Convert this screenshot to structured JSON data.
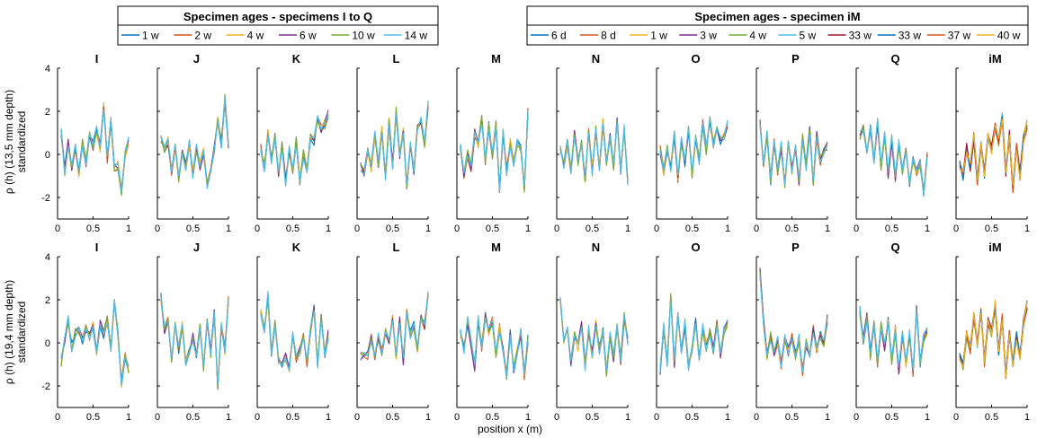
{
  "chart_data": {
    "type": "line",
    "xlabel": "position x (m)",
    "x_ticks": [
      "0",
      "0.5",
      "1"
    ],
    "xlim": [
      0,
      1
    ],
    "ylim": [
      -3,
      4
    ],
    "y_ticks": [
      "-2",
      "0",
      "2",
      "4"
    ],
    "row_ylabels": [
      [
        "ρ (h) (13,5 mm depth)",
        "standardized"
      ],
      [
        "ρ (h) (19,4 mm depth)",
        "standardized"
      ]
    ],
    "panels": [
      "I",
      "J",
      "K",
      "L",
      "M",
      "N",
      "O",
      "P",
      "Q",
      "iM"
    ],
    "legends": [
      {
        "title": "Specimen ages - specimens I to Q",
        "entries": [
          {
            "label": "1 w",
            "color": "#0072BD"
          },
          {
            "label": "2 w",
            "color": "#D95319"
          },
          {
            "label": "4 w",
            "color": "#EDB120"
          },
          {
            "label": "6 w",
            "color": "#7E2F8E"
          },
          {
            "label": "10 w",
            "color": "#77AC30"
          },
          {
            "label": "14 w",
            "color": "#4DBEEE"
          }
        ]
      },
      {
        "title": "Specimen ages - specimen iM",
        "entries": [
          {
            "label": "6 d",
            "color": "#0072BD"
          },
          {
            "label": "8 d",
            "color": "#D95319"
          },
          {
            "label": "1 w",
            "color": "#EDB120"
          },
          {
            "label": "3 w",
            "color": "#7E2F8E"
          },
          {
            "label": "4 w",
            "color": "#77AC30"
          },
          {
            "label": "5 w",
            "color": "#4DBEEE"
          },
          {
            "label": "33 w",
            "color": "#A2142F"
          },
          {
            "label": "33 w",
            "color": "#0072BD"
          },
          {
            "label": "37 w",
            "color": "#D95319"
          },
          {
            "label": "40 w",
            "color": "#EDB120"
          }
        ]
      }
    ],
    "x": [
      0.05,
      0.1,
      0.15,
      0.2,
      0.25,
      0.3,
      0.35,
      0.4,
      0.45,
      0.5,
      0.55,
      0.6,
      0.65,
      0.7,
      0.75,
      0.8,
      0.85,
      0.9,
      0.95,
      1.0
    ],
    "profiles": {
      "top": {
        "I": [
          1.0,
          -0.8,
          0.5,
          -0.6,
          0.3,
          -0.9,
          0.6,
          -0.4,
          0.9,
          0.4,
          1.2,
          0.3,
          2.2,
          -0.2,
          1.6,
          -0.7,
          -0.5,
          -1.8,
          0.0,
          0.6
        ],
        "J": [
          0.8,
          0.3,
          0.6,
          -0.8,
          0.4,
          -1.1,
          0.2,
          -0.6,
          0.5,
          -0.9,
          0.3,
          -0.5,
          0.1,
          -1.4,
          -0.6,
          0.3,
          1.6,
          0.5,
          2.6,
          0.4
        ],
        "K": [
          0.3,
          -0.6,
          1.0,
          -0.3,
          0.9,
          -0.9,
          0.4,
          -1.3,
          0.2,
          -0.7,
          0.6,
          -1.2,
          0.0,
          -0.8,
          0.8,
          0.6,
          1.7,
          1.2,
          1.4,
          1.9
        ],
        "L": [
          -0.6,
          -0.9,
          0.1,
          -0.6,
          0.9,
          -0.4,
          1.1,
          -1.0,
          1.5,
          -0.5,
          2.0,
          0.0,
          1.0,
          -1.5,
          0.5,
          -0.8,
          1.2,
          1.6,
          0.5,
          2.3
        ],
        "M": [
          0.3,
          -1.0,
          0.0,
          -0.6,
          1.0,
          0.4,
          1.6,
          -0.4,
          1.3,
          0.0,
          1.4,
          -1.6,
          1.0,
          -0.8,
          0.6,
          -0.4,
          0.6,
          0.3,
          -1.6,
          2.0
        ],
        "N": [
          0.3,
          -0.5,
          0.5,
          -0.8,
          0.9,
          -0.4,
          0.6,
          -1.1,
          1.0,
          -0.8,
          1.2,
          -0.6,
          1.5,
          -0.3,
          0.9,
          -0.5,
          1.6,
          -0.9,
          1.2,
          -1.3
        ],
        "O": [
          0.2,
          -0.8,
          0.3,
          -0.6,
          0.9,
          -1.1,
          0.6,
          -0.4,
          1.2,
          -0.9,
          0.8,
          -0.3,
          1.4,
          0.2,
          1.6,
          0.4,
          1.1,
          0.6,
          0.9,
          1.4
        ],
        "P": [
          1.5,
          -0.6,
          0.9,
          -1.2,
          0.6,
          -0.8,
          0.4,
          -1.5,
          0.5,
          -0.7,
          0.3,
          -1.3,
          0.8,
          -0.6,
          1.1,
          -1.4,
          0.9,
          -0.3,
          0.2,
          0.4
        ],
        "Q": [
          0.9,
          1.2,
          0.1,
          1.3,
          -0.3,
          1.5,
          -0.6,
          1.0,
          -0.9,
          0.7,
          -1.1,
          0.5,
          -0.8,
          0.1,
          -1.3,
          -0.2,
          -0.9,
          -0.4,
          -1.8,
          0.0
        ],
        "iM": [
          -0.5,
          -1.0,
          0.3,
          -0.6,
          0.8,
          -1.2,
          0.4,
          -0.9,
          0.9,
          0.2,
          1.3,
          0.6,
          1.7,
          -0.8,
          0.9,
          -1.6,
          0.4,
          -1.0,
          0.7,
          1.4
        ]
      },
      "bottom": {
        "I": [
          -0.9,
          0.2,
          1.1,
          -0.2,
          0.5,
          0.6,
          0.1,
          0.7,
          0.3,
          0.8,
          -0.4,
          0.9,
          0.4,
          1.1,
          -0.2,
          1.8,
          0.5,
          -1.9,
          -0.6,
          -1.2
        ],
        "J": [
          2.1,
          0.6,
          1.0,
          -0.8,
          0.8,
          -0.3,
          0.9,
          -1.0,
          -0.4,
          0.3,
          -0.6,
          0.7,
          -1.2,
          1.0,
          -0.5,
          1.4,
          -2.0,
          0.8,
          -0.4,
          2.0
        ],
        "K": [
          1.4,
          0.6,
          2.2,
          -0.5,
          0.9,
          -0.8,
          -1.0,
          -0.6,
          -1.3,
          0.5,
          -0.7,
          -0.4,
          0.3,
          -0.9,
          0.6,
          1.6,
          -1.0,
          1.2,
          -0.6,
          0.4
        ],
        "L": [
          -0.6,
          -0.5,
          -0.6,
          0.2,
          -0.8,
          0.3,
          -0.4,
          0.6,
          0.1,
          1.2,
          -0.6,
          1.0,
          -0.8,
          1.5,
          0.4,
          0.8,
          -0.2,
          1.1,
          0.8,
          2.3
        ],
        "M": [
          0.5,
          -0.3,
          1.0,
          0.0,
          -1.1,
          1.1,
          -0.2,
          1.3,
          0.5,
          1.0,
          -0.6,
          0.7,
          -0.3,
          -1.6,
          0.4,
          -1.2,
          -0.4,
          0.5,
          -1.5,
          0.2
        ],
        "N": [
          2.1,
          0.1,
          0.7,
          -0.9,
          0.4,
          -0.2,
          0.8,
          -1.1,
          0.6,
          -0.5,
          0.9,
          -0.3,
          0.5,
          -1.4,
          0.4,
          -0.7,
          0.8,
          -0.8,
          1.2,
          0.1
        ],
        "O": [
          -1.3,
          0.8,
          -0.9,
          2.1,
          -1.0,
          1.2,
          -0.4,
          0.9,
          -1.1,
          -0.2,
          1.0,
          -0.6,
          0.7,
          -0.2,
          0.5,
          -0.4,
          0.9,
          -0.6,
          0.6,
          1.0
        ],
        "P": [
          3.3,
          1.0,
          -0.6,
          0.3,
          -0.5,
          0.1,
          -1.0,
          0.2,
          -0.4,
          0.3,
          -0.6,
          0.2,
          -1.3,
          0.0,
          -0.6,
          0.6,
          -0.3,
          0.4,
          0.0,
          1.1
        ],
        "Q": [
          1.5,
          0.1,
          1.2,
          -0.6,
          0.9,
          -1.0,
          0.8,
          -0.2,
          1.0,
          -0.8,
          0.6,
          -1.3,
          0.4,
          -1.0,
          0.5,
          -1.4,
          1.6,
          -0.9,
          0.2,
          0.5
        ],
        "iM": [
          -0.6,
          -1.1,
          0.4,
          -0.3,
          1.2,
          0.0,
          1.5,
          -0.9,
          1.0,
          0.5,
          1.8,
          -0.4,
          1.2,
          -1.5,
          0.5,
          -1.0,
          0.3,
          -0.6,
          0.9,
          1.8
        ]
      }
    }
  }
}
